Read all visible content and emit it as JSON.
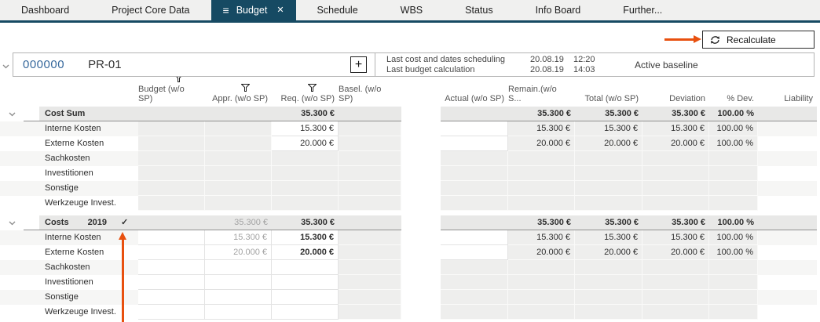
{
  "colors": {
    "accent_navy": "#164a63",
    "annotation_orange": "#e8500f",
    "project_number_blue": "#36689c",
    "group_row_bg": "#e8e8e7",
    "cell_gray": "#eeeeed"
  },
  "icons": {
    "hamburger": "≡",
    "close": "✕",
    "plus": "+",
    "check": "✓",
    "filter": "filter-icon",
    "refresh": "refresh-icon",
    "chevron": "chevron-down-icon"
  },
  "tabs": [
    {
      "label": "Dashboard",
      "active": false
    },
    {
      "label": "Project Core Data",
      "active": false
    },
    {
      "label": "Budget",
      "active": true
    },
    {
      "label": "Schedule",
      "active": false
    },
    {
      "label": "WBS",
      "active": false
    },
    {
      "label": "Status",
      "active": false
    },
    {
      "label": "Info Board",
      "active": false
    },
    {
      "label": "Further...",
      "active": false
    }
  ],
  "toolbar": {
    "recalculate_label": "Recalculate"
  },
  "project": {
    "number": "000000",
    "code": "PR-01",
    "info": [
      {
        "label": "Last cost and dates scheduling",
        "date": "20.08.19",
        "time": "12:20"
      },
      {
        "label": "Last budget calculation",
        "date": "20.08.19",
        "time": "14:03"
      }
    ],
    "baseline": "Active baseline"
  },
  "table": {
    "columns": [
      "Budget (w/o SP)",
      "Appr. (w/o SP)",
      "Req. (w/o SP)",
      "Basel. (w/o SP)",
      "Actual (w/o SP)",
      "Remain.(w/o S...",
      "Total (w/o SP)",
      "Deviation",
      "% Dev.",
      "Liability"
    ],
    "filtered_columns": [
      "Budget (w/o SP)",
      "Appr. (w/o SP)",
      "Req. (w/o SP)"
    ],
    "sections": [
      {
        "group": {
          "label": "Cost Sum",
          "cells": {
            "req": "35.300 €",
            "remain": "35.300 €",
            "total": "35.300 €",
            "deviation": "35.300 €",
            "pdev": "100.00 %"
          }
        },
        "rows": [
          {
            "label": "Interne Kosten",
            "cells": {
              "req": "15.300 €",
              "remain": "15.300 €",
              "total": "15.300 €",
              "deviation": "15.300 €",
              "pdev": "100.00 %"
            }
          },
          {
            "label": "Externe Kosten",
            "cells": {
              "req": "20.000 €",
              "remain": "20.000 €",
              "total": "20.000 €",
              "deviation": "20.000 €",
              "pdev": "100.00 %"
            }
          },
          {
            "label": "Sachkosten",
            "cells": {}
          },
          {
            "label": "Investitionen",
            "cells": {}
          },
          {
            "label": "Sonstige",
            "cells": {}
          },
          {
            "label": "Werkzeuge Invest.",
            "cells": {}
          }
        ]
      },
      {
        "group": {
          "label": "Costs",
          "year": "2019",
          "checked": "✓",
          "cells": {
            "appr": "35.300 €",
            "req": "35.300 €",
            "remain": "35.300 €",
            "total": "35.300 €",
            "deviation": "35.300 €",
            "pdev": "100.00 %"
          }
        },
        "rows": [
          {
            "label": "Interne Kosten",
            "cells": {
              "appr": "15.300 €",
              "req": "15.300 €",
              "remain": "15.300 €",
              "total": "15.300 €",
              "deviation": "15.300 €",
              "pdev": "100.00 %"
            }
          },
          {
            "label": "Externe Kosten",
            "cells": {
              "appr": "20.000 €",
              "req": "20.000 €",
              "remain": "20.000 €",
              "total": "20.000 €",
              "deviation": "20.000 €",
              "pdev": "100.00 %"
            }
          },
          {
            "label": "Sachkosten",
            "cells": {}
          },
          {
            "label": "Investitionen",
            "cells": {}
          },
          {
            "label": "Sonstige",
            "cells": {}
          },
          {
            "label": "Werkzeuge Invest.",
            "cells": {}
          }
        ]
      }
    ]
  }
}
